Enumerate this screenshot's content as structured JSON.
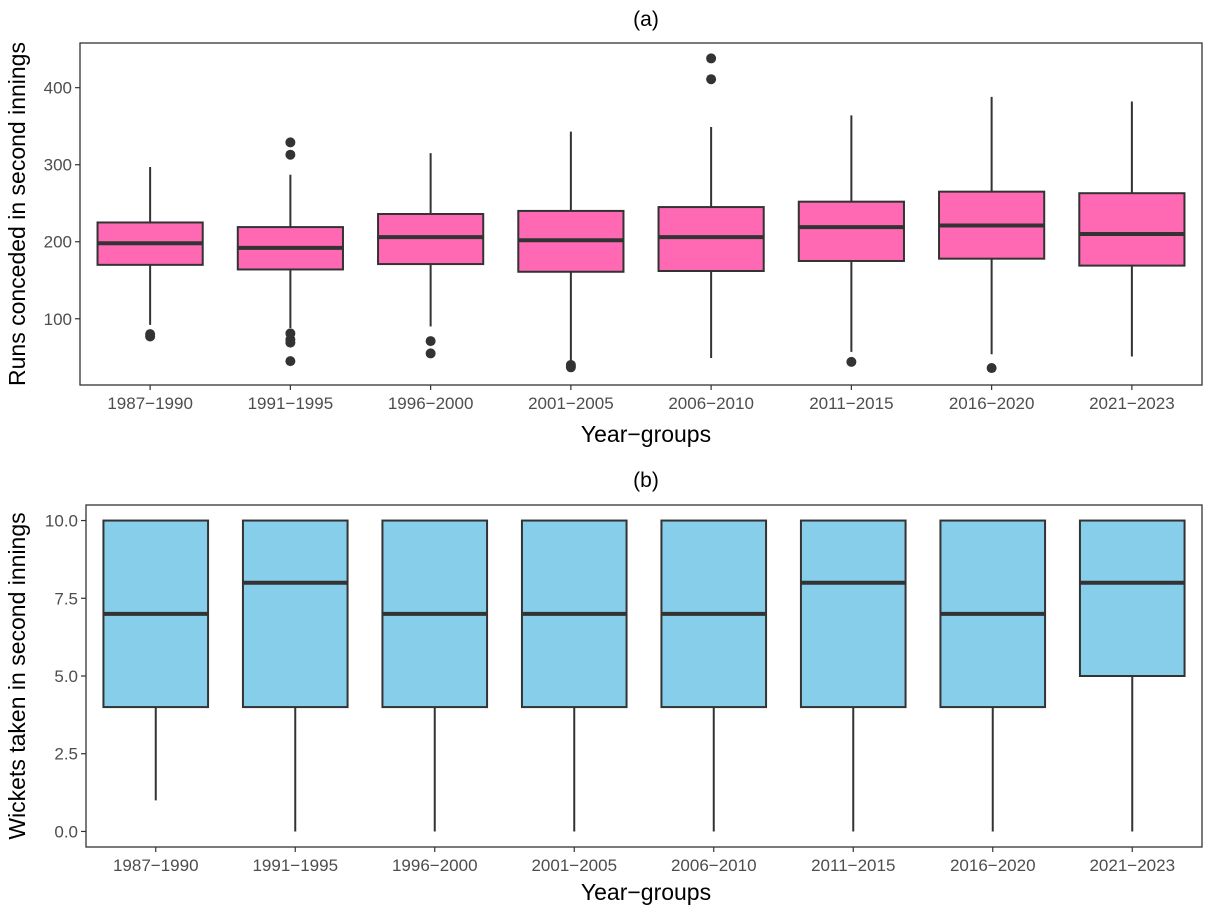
{
  "chart_data": [
    {
      "type": "box",
      "title": "(a)",
      "xlabel": "Year−groups",
      "ylabel": "Runs conceded in second innings",
      "ylim": [
        14,
        458
      ],
      "yticks": [
        "100",
        "200",
        "300",
        "400"
      ],
      "ytick_values": [
        100,
        200,
        300,
        400
      ],
      "grid": false,
      "fill_color": "#ff69b4",
      "categories": [
        "1987−1990",
        "1991−1995",
        "1996−2000",
        "2001−2005",
        "2006−2010",
        "2011−2015",
        "2016−2020",
        "2021−2023"
      ],
      "boxes": [
        {
          "whisker_low": 92,
          "q1": 170,
          "median": 198,
          "q3": 225,
          "whisker_high": 297,
          "outliers": [
            77,
            80
          ]
        },
        {
          "whisker_low": 88,
          "q1": 164,
          "median": 192,
          "q3": 219,
          "whisker_high": 287,
          "outliers": [
            45,
            69,
            73,
            81,
            313,
            329
          ]
        },
        {
          "whisker_low": 90,
          "q1": 171,
          "median": 206,
          "q3": 236,
          "whisker_high": 315,
          "outliers": [
            55,
            71
          ]
        },
        {
          "whisker_low": 45,
          "q1": 161,
          "median": 202,
          "q3": 240,
          "whisker_high": 343,
          "outliers": [
            37,
            40
          ]
        },
        {
          "whisker_low": 49,
          "q1": 162,
          "median": 206,
          "q3": 245,
          "whisker_high": 349,
          "outliers": [
            411,
            438
          ]
        },
        {
          "whisker_low": 57,
          "q1": 175,
          "median": 219,
          "q3": 252,
          "whisker_high": 364,
          "outliers": [
            44
          ]
        },
        {
          "whisker_low": 54,
          "q1": 178,
          "median": 221,
          "q3": 265,
          "whisker_high": 388,
          "outliers": [
            36
          ]
        },
        {
          "whisker_low": 51,
          "q1": 169,
          "median": 210,
          "q3": 263,
          "whisker_high": 382,
          "outliers": []
        }
      ]
    },
    {
      "type": "box",
      "title": "(b)",
      "xlabel": "Year−groups",
      "ylabel": "Wickets taken in second innings",
      "ylim": [
        -0.5,
        10.5
      ],
      "yticks": [
        "0.0",
        "2.5",
        "5.0",
        "7.5",
        "10.0"
      ],
      "ytick_values": [
        0,
        2.5,
        5,
        7.5,
        10
      ],
      "grid": false,
      "fill_color": "#87ceeb",
      "categories": [
        "1987−1990",
        "1991−1995",
        "1996−2000",
        "2001−2005",
        "2006−2010",
        "2011−2015",
        "2016−2020",
        "2021−2023"
      ],
      "boxes": [
        {
          "whisker_low": 1,
          "q1": 4,
          "median": 7,
          "q3": 10,
          "whisker_high": 10,
          "outliers": []
        },
        {
          "whisker_low": 0,
          "q1": 4,
          "median": 8,
          "q3": 10,
          "whisker_high": 10,
          "outliers": []
        },
        {
          "whisker_low": 0,
          "q1": 4,
          "median": 7,
          "q3": 10,
          "whisker_high": 10,
          "outliers": []
        },
        {
          "whisker_low": 0,
          "q1": 4,
          "median": 7,
          "q3": 10,
          "whisker_high": 10,
          "outliers": []
        },
        {
          "whisker_low": 0,
          "q1": 4,
          "median": 7,
          "q3": 10,
          "whisker_high": 10,
          "outliers": []
        },
        {
          "whisker_low": 0,
          "q1": 4,
          "median": 8,
          "q3": 10,
          "whisker_high": 10,
          "outliers": []
        },
        {
          "whisker_low": 0,
          "q1": 4,
          "median": 7,
          "q3": 10,
          "whisker_high": 10,
          "outliers": []
        },
        {
          "whisker_low": 0,
          "q1": 5,
          "median": 8,
          "q3": 10,
          "whisker_high": 10,
          "outliers": []
        }
      ]
    }
  ]
}
